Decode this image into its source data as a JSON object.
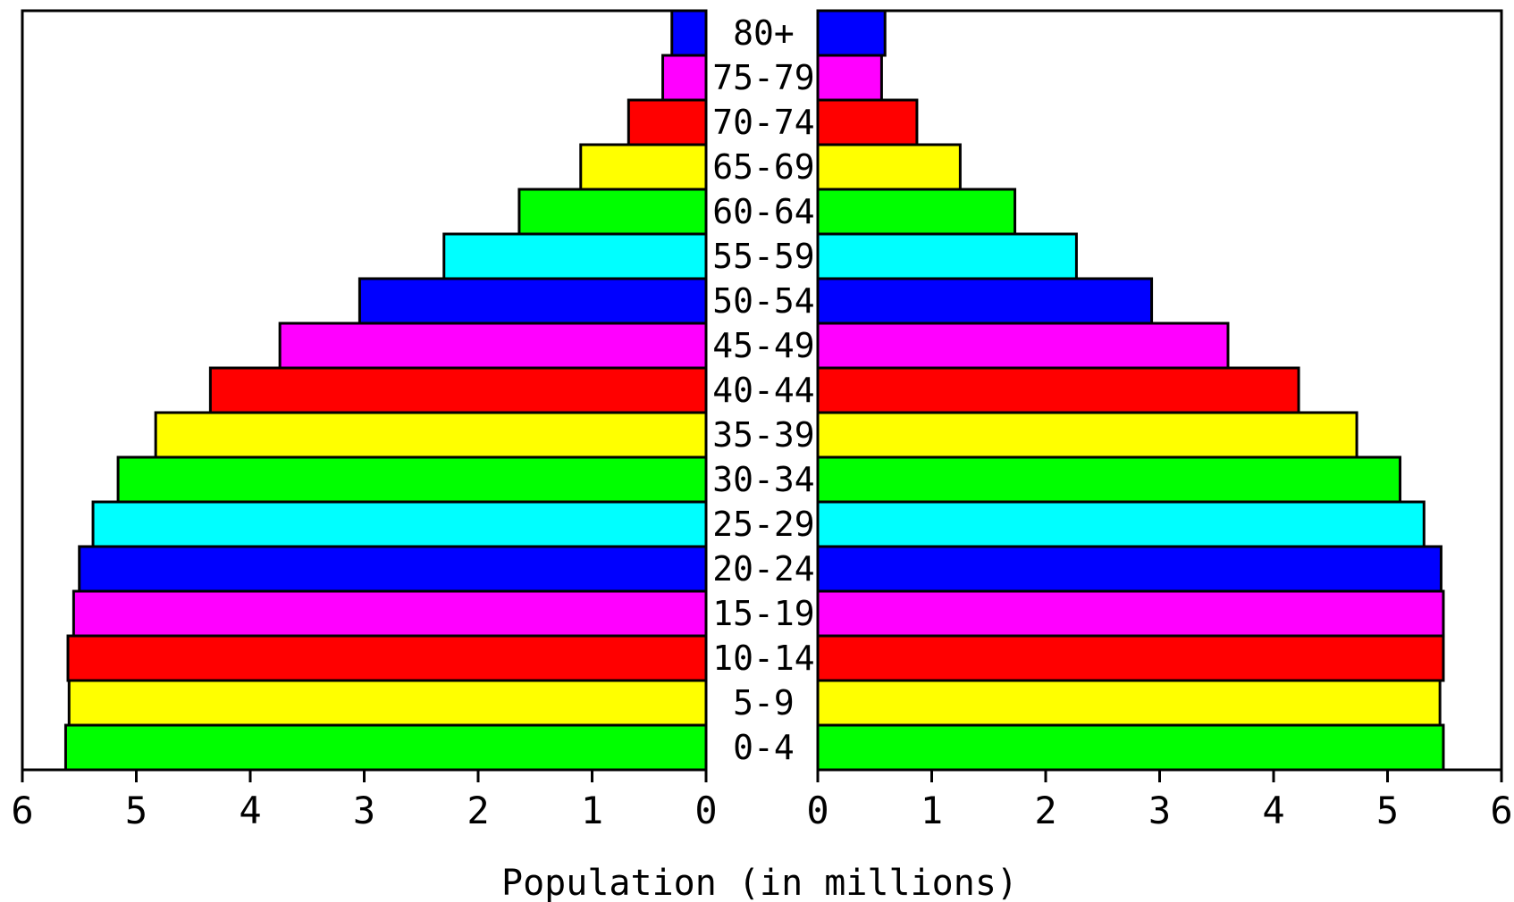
{
  "chart_data": {
    "type": "bar",
    "orientation": "horizontal",
    "layout": "population-pyramid",
    "xlabel": "Population (in millions)",
    "xlim": [
      0,
      6
    ],
    "xticks": [
      0,
      1,
      2,
      3,
      4,
      5,
      6
    ],
    "categories": [
      "0-4",
      "5-9",
      "10-14",
      "15-19",
      "20-24",
      "25-29",
      "30-34",
      "35-39",
      "40-44",
      "45-49",
      "50-54",
      "55-59",
      "60-64",
      "65-69",
      "70-74",
      "75-79",
      "80+"
    ],
    "colors": [
      "#00ff00",
      "#ffff00",
      "#ff0000",
      "#ff00ff",
      "#0000ff",
      "#00ffff",
      "#00ff00",
      "#ffff00",
      "#ff0000",
      "#ff00ff",
      "#0000ff",
      "#00ffff",
      "#00ff00",
      "#ffff00",
      "#ff0000",
      "#ff00ff",
      "#0000ff"
    ],
    "series": [
      {
        "side": "left",
        "values": [
          5.62,
          5.59,
          5.6,
          5.55,
          5.5,
          5.38,
          5.16,
          4.83,
          4.35,
          3.74,
          3.04,
          2.3,
          1.64,
          1.1,
          0.68,
          0.38,
          0.3
        ]
      },
      {
        "side": "right",
        "values": [
          5.49,
          5.46,
          5.49,
          5.49,
          5.47,
          5.32,
          5.11,
          4.73,
          4.22,
          3.6,
          2.93,
          2.27,
          1.73,
          1.25,
          0.87,
          0.56,
          0.59
        ]
      }
    ],
    "grid": false
  }
}
